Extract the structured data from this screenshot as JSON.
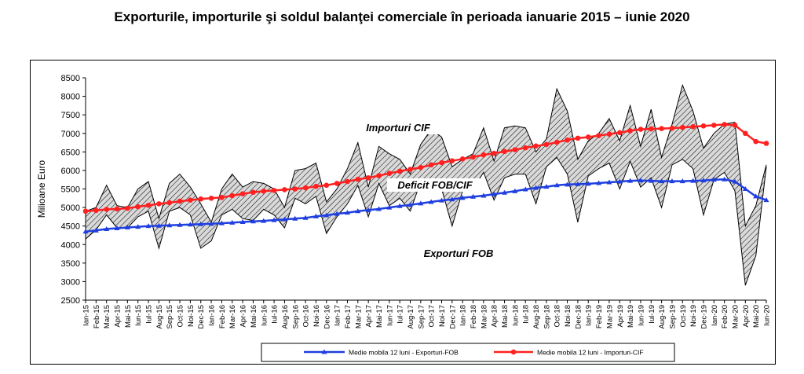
{
  "title": "Exporturile, importurile şi soldul balanţei comerciale în perioada ianuarie 2015 – iunie 2020",
  "chart_data": {
    "type": "line",
    "title": "Exporturile, importurile şi soldul balanţei comerciale în perioada ianuarie 2015 – iunie 2020",
    "xlabel": "",
    "ylabel": "Milioane Euro",
    "ylim": [
      2500,
      8500
    ],
    "yticks": [
      2500,
      3000,
      3500,
      4000,
      4500,
      5000,
      5500,
      6000,
      6500,
      7000,
      7500,
      8000,
      8500
    ],
    "grid": false,
    "legend_position": "bottom",
    "categories": [
      "Ian-15",
      "Feb-15",
      "Mar-15",
      "Apr-15",
      "Mai-15",
      "Iun-15",
      "Iul-15",
      "Aug-15",
      "Sep-15",
      "Oct-15",
      "Noi-15",
      "Dec-15",
      "Ian-16",
      "Feb-16",
      "Mar-16",
      "Apr-16",
      "Mai-16",
      "Iun-16",
      "Iul-16",
      "Aug-16",
      "Sep-16",
      "Oct-16",
      "Noi-16",
      "Dec-16",
      "Ian-17",
      "Feb-17",
      "Mar-17",
      "Apr-17",
      "Mai-17",
      "Iun-17",
      "Iul-17",
      "Aug-17",
      "Sep-17",
      "Oct-17",
      "Noi-17",
      "Dec-17",
      "Ian-18",
      "Feb-18",
      "Mar-18",
      "Apr-18",
      "Mai-18",
      "Iun-18",
      "Iul-18",
      "Aug-18",
      "Sep-18",
      "Oct-18",
      "Noi-18",
      "Dec-18",
      "Ian-19",
      "Feb-19",
      "Mar-19",
      "Apr-19",
      "Mai-19",
      "Iun-19",
      "Iul-19",
      "Aug-19",
      "Sep-19",
      "Oct-19",
      "Noi-19",
      "Dec-19",
      "Ian-20",
      "Feb-20",
      "Mar-20",
      "Apr-20",
      "Mai-20",
      "Iun-20"
    ],
    "series": [
      {
        "name": "Exporturi FOB",
        "role": "area-bottom",
        "values": [
          4150,
          4400,
          4800,
          4450,
          4450,
          4750,
          4900,
          3900,
          4900,
          5000,
          4800,
          3900,
          4100,
          4800,
          4950,
          4700,
          4650,
          4950,
          4800,
          4450,
          5250,
          5100,
          5300,
          4300,
          4750,
          5100,
          5600,
          4750,
          5650,
          5050,
          5250,
          4900,
          5700,
          5600,
          5500,
          4500,
          5450,
          5500,
          5950,
          5200,
          5800,
          5900,
          5900,
          5100,
          6100,
          6350,
          5900,
          4600,
          5850,
          6050,
          6200,
          5500,
          6250,
          5550,
          5800,
          5000,
          6150,
          6300,
          6050,
          4800,
          5750,
          5950,
          5450,
          2900,
          3700,
          6100
        ]
      },
      {
        "name": "Importuri CIF",
        "role": "area-top",
        "values": [
          4900,
          5000,
          5600,
          5050,
          5000,
          5500,
          5700,
          4700,
          5650,
          5900,
          5550,
          5100,
          4600,
          5500,
          5900,
          5550,
          5700,
          5650,
          5500,
          5000,
          6000,
          6050,
          6200,
          5150,
          5500,
          6050,
          6750,
          5550,
          6650,
          6450,
          6300,
          5900,
          6700,
          7100,
          6900,
          6100,
          6300,
          6450,
          7150,
          6250,
          7150,
          7200,
          7150,
          6500,
          6850,
          8200,
          7600,
          6300,
          6800,
          7000,
          7400,
          6800,
          7750,
          6650,
          7650,
          6350,
          7250,
          8300,
          7600,
          6600,
          7000,
          7250,
          7300,
          4500,
          5050,
          6150
        ]
      },
      {
        "name": "Medie mobila 12 luni - Exporturi-FOB",
        "color": "#1f3fe0",
        "values": [
          4350,
          4380,
          4420,
          4440,
          4460,
          4480,
          4500,
          4510,
          4520,
          4530,
          4540,
          4550,
          4560,
          4575,
          4590,
          4610,
          4625,
          4640,
          4660,
          4680,
          4700,
          4720,
          4760,
          4790,
          4830,
          4860,
          4900,
          4930,
          4960,
          5000,
          5040,
          5070,
          5110,
          5150,
          5190,
          5220,
          5260,
          5290,
          5320,
          5360,
          5400,
          5440,
          5490,
          5530,
          5560,
          5600,
          5620,
          5630,
          5640,
          5660,
          5680,
          5700,
          5720,
          5730,
          5720,
          5710,
          5710,
          5710,
          5720,
          5730,
          5750,
          5760,
          5700,
          5500,
          5300,
          5200
        ]
      },
      {
        "name": "Medie mobila 12 luni - Importuri-CIF",
        "color": "#ff2020",
        "values": [
          4900,
          4920,
          4950,
          4960,
          4980,
          5020,
          5060,
          5100,
          5130,
          5170,
          5200,
          5230,
          5250,
          5270,
          5320,
          5370,
          5410,
          5440,
          5460,
          5480,
          5500,
          5530,
          5570,
          5600,
          5650,
          5700,
          5760,
          5800,
          5860,
          5920,
          5980,
          6030,
          6080,
          6150,
          6210,
          6260,
          6310,
          6360,
          6420,
          6460,
          6510,
          6560,
          6610,
          6660,
          6700,
          6760,
          6820,
          6870,
          6900,
          6940,
          6980,
          7020,
          7070,
          7110,
          7120,
          7130,
          7140,
          7160,
          7180,
          7200,
          7220,
          7240,
          7220,
          7000,
          6780,
          6730
        ]
      }
    ],
    "annotations": [
      "Importuri CIF",
      "Deficit FOB/CIF",
      "Exporturi FOB"
    ]
  },
  "legend": {
    "item1": "Medie mobila 12 luni - Exporturi-FOB",
    "item2": "Medie mobila 12 luni - Importuri-CIF"
  }
}
